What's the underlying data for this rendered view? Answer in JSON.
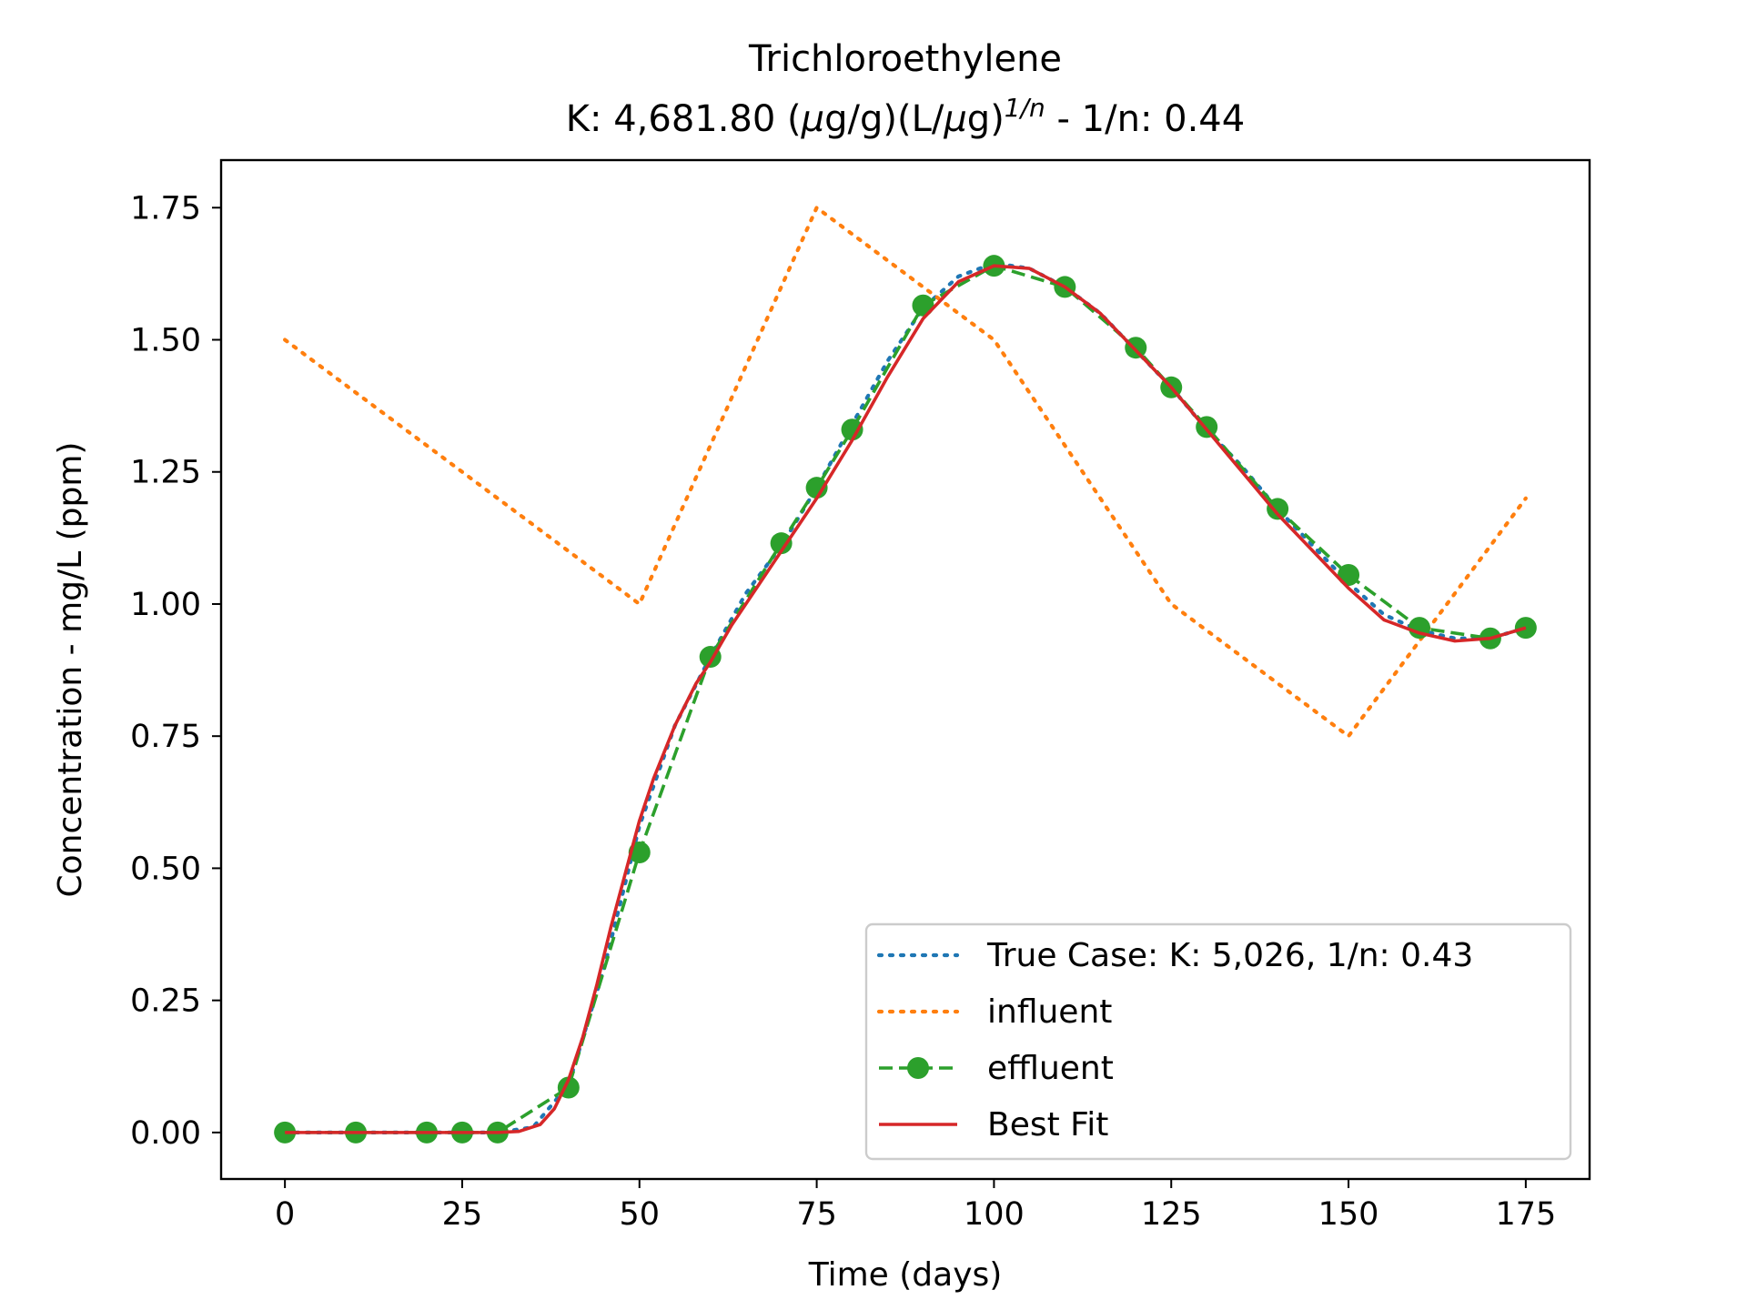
{
  "chart_data": {
    "type": "line",
    "title": "Trichloroethylene",
    "subtitle": {
      "prefix": "K: 4,681.80 (",
      "mu1": "μ",
      "mid": "g/g)(L/",
      "mu2": "μ",
      "end": "g)",
      "sup": "1/n",
      "suffix": " - 1/n: 0.44"
    },
    "xlabel": "Time (days)",
    "ylabel": "Concentration - mg/L (ppm)",
    "xlim": [
      -9,
      184
    ],
    "ylim": [
      -0.088,
      1.84
    ],
    "xticks": [
      0,
      25,
      50,
      75,
      100,
      125,
      150,
      175
    ],
    "xtick_labels": [
      "0",
      "25",
      "50",
      "75",
      "100",
      "125",
      "150",
      "175"
    ],
    "yticks": [
      0,
      0.25,
      0.5,
      0.75,
      1.0,
      1.25,
      1.5,
      1.75
    ],
    "ytick_labels": [
      "0.00",
      "0.25",
      "0.50",
      "0.75",
      "1.00",
      "1.25",
      "1.50",
      "1.75"
    ],
    "grid": false,
    "legend_position": "lower-right",
    "colors": {
      "true_case": "#1f77b4",
      "influent": "#ff7f0e",
      "effluent": "#2ca02c",
      "best_fit": "#d62728"
    },
    "series": [
      {
        "name": "True Case: K: 5,026, 1/n: 0.43",
        "key": "true_case",
        "style": "dotted",
        "x": [
          0,
          10,
          20,
          30,
          35,
          40,
          45,
          50,
          55,
          60,
          65,
          70,
          75,
          80,
          85,
          90,
          95,
          100,
          105,
          110,
          115,
          120,
          125,
          130,
          135,
          140,
          145,
          150,
          155,
          160,
          165,
          170,
          175
        ],
        "y": [
          0,
          0,
          0,
          0,
          0.01,
          0.09,
          0.31,
          0.58,
          0.77,
          0.9,
          1.02,
          1.11,
          1.22,
          1.34,
          1.46,
          1.56,
          1.62,
          1.645,
          1.635,
          1.6,
          1.55,
          1.48,
          1.41,
          1.33,
          1.26,
          1.18,
          1.11,
          1.04,
          0.98,
          0.95,
          0.935,
          0.935,
          0.955
        ]
      },
      {
        "name": "influent",
        "key": "influent",
        "style": "dotted",
        "x": [
          0,
          50,
          75,
          100,
          125,
          150,
          175
        ],
        "y": [
          1.5,
          1.0,
          1.75,
          1.5,
          1.0,
          0.75,
          1.2
        ]
      },
      {
        "name": "effluent",
        "key": "effluent",
        "style": "dashed-markers",
        "x": [
          0,
          10,
          20,
          25,
          30,
          40,
          50,
          60,
          70,
          75,
          80,
          90,
          100,
          110,
          120,
          125,
          130,
          140,
          150,
          160,
          170,
          175
        ],
        "y": [
          0,
          0,
          0,
          0,
          0,
          0.085,
          0.53,
          0.9,
          1.115,
          1.22,
          1.33,
          1.565,
          1.64,
          1.6,
          1.485,
          1.41,
          1.335,
          1.18,
          1.055,
          0.955,
          0.935,
          0.955
        ]
      },
      {
        "name": "Best Fit",
        "key": "best_fit",
        "style": "solid",
        "x": [
          0,
          10,
          20,
          30,
          33,
          36,
          38,
          40,
          42,
          44,
          46,
          48,
          50,
          52,
          55,
          58,
          60,
          63,
          66,
          70,
          75,
          80,
          85,
          90,
          95,
          100,
          105,
          110,
          115,
          120,
          125,
          130,
          135,
          140,
          145,
          150,
          155,
          160,
          165,
          170,
          175
        ],
        "y": [
          0,
          0,
          0,
          0,
          0.002,
          0.015,
          0.045,
          0.1,
          0.18,
          0.28,
          0.39,
          0.49,
          0.59,
          0.67,
          0.77,
          0.85,
          0.89,
          0.96,
          1.02,
          1.1,
          1.2,
          1.31,
          1.43,
          1.54,
          1.61,
          1.64,
          1.635,
          1.6,
          1.55,
          1.48,
          1.41,
          1.33,
          1.25,
          1.17,
          1.1,
          1.03,
          0.97,
          0.945,
          0.93,
          0.935,
          0.955
        ]
      }
    ]
  }
}
